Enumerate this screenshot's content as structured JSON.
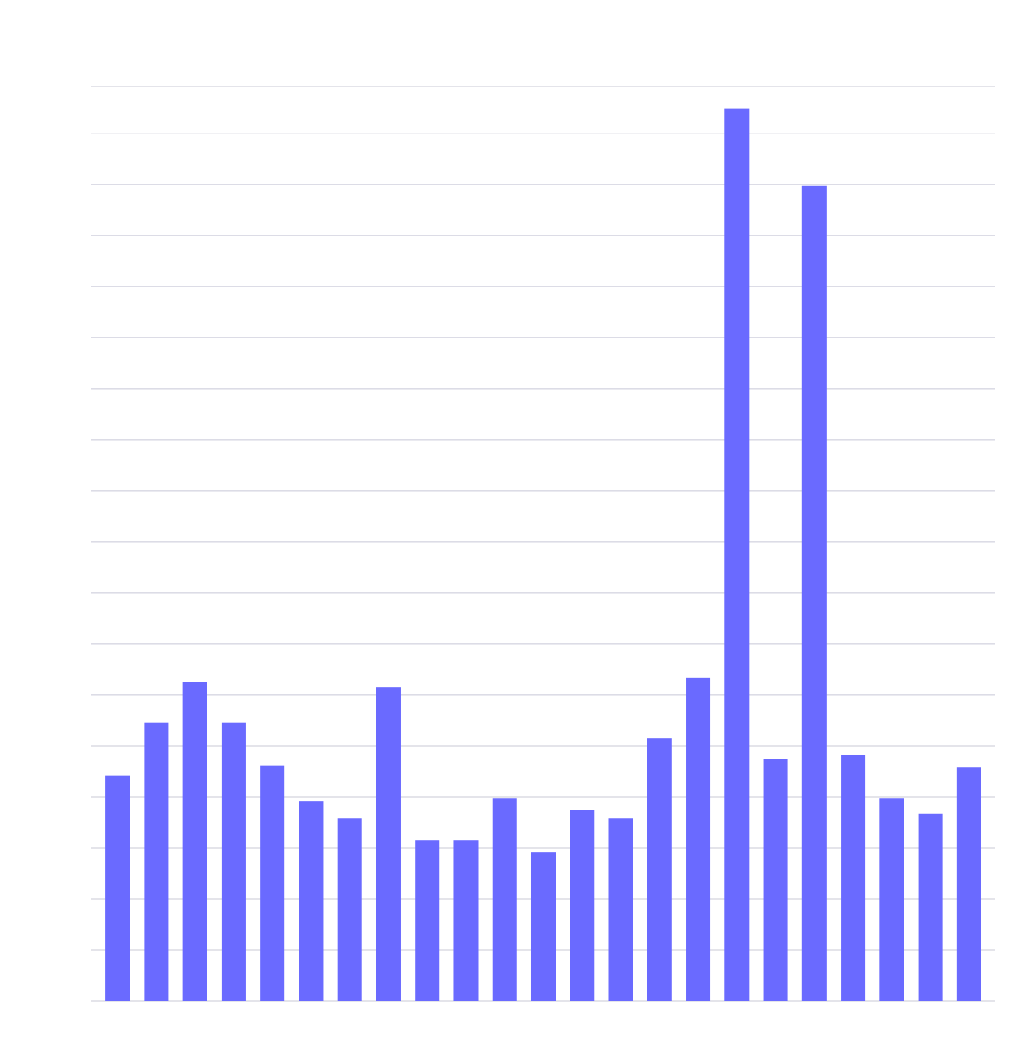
{
  "chart_data": {
    "type": "bar",
    "values": [
      4.42,
      5.45,
      6.25,
      5.45,
      4.62,
      3.92,
      3.58,
      6.15,
      3.15,
      3.15,
      3.98,
      2.92,
      3.74,
      3.58,
      5.15,
      6.34,
      17.48,
      4.74,
      15.97,
      4.83,
      3.98,
      3.68,
      4.58
    ],
    "color": "#6a6aff",
    "ylim": [
      0,
      17.92
    ],
    "yticks": [
      0,
      1,
      2,
      3,
      4,
      5,
      6,
      7,
      8,
      9,
      10,
      11,
      12,
      13,
      14,
      15,
      16,
      17
    ],
    "grid": true
  }
}
